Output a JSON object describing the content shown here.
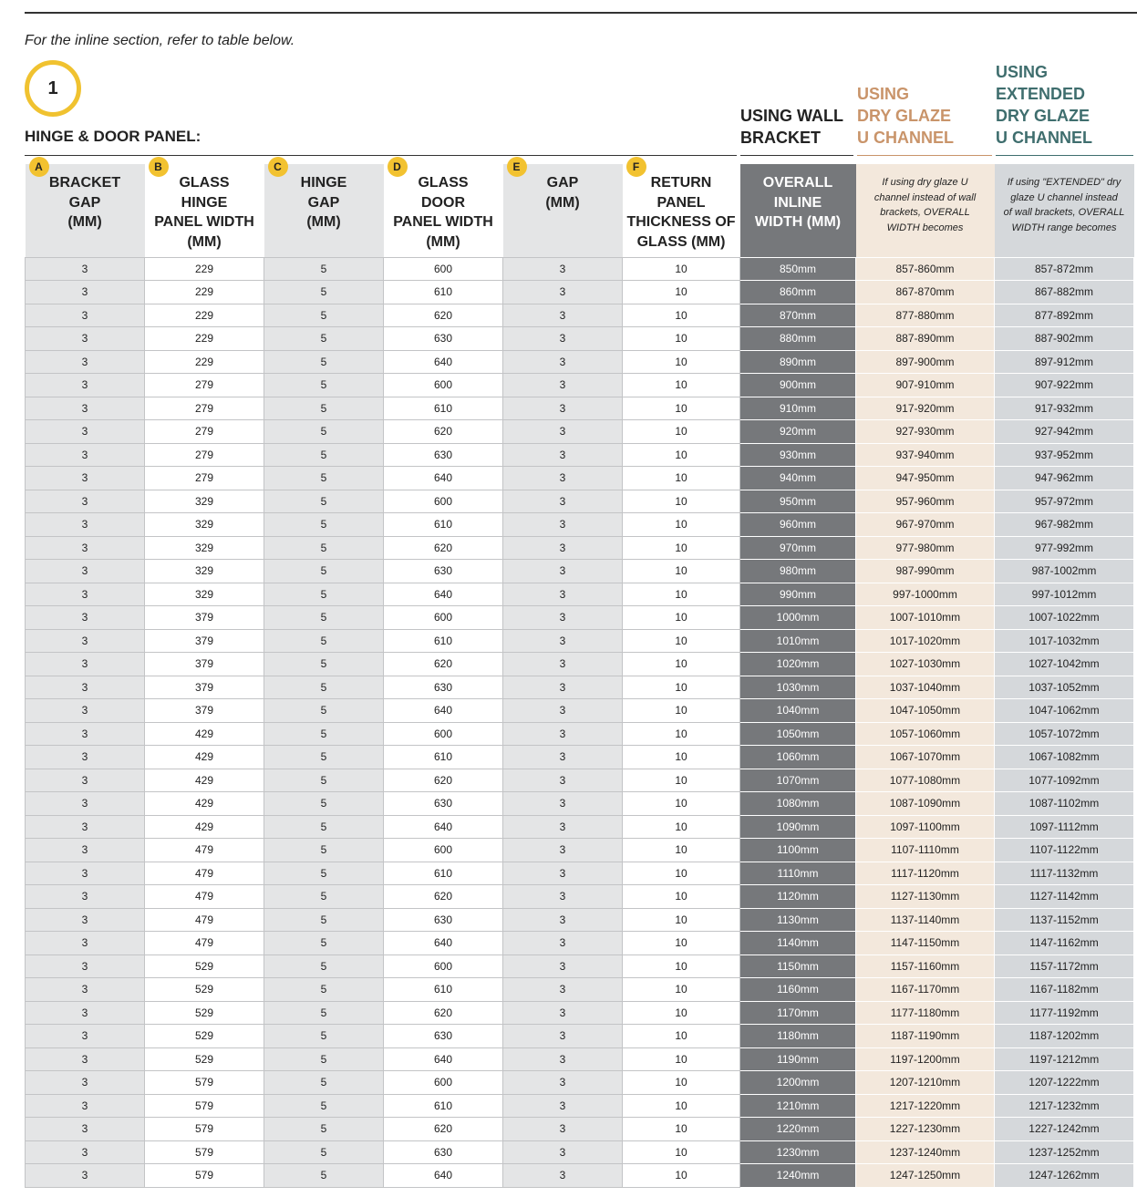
{
  "intro": "For the inline section, refer to table below.",
  "section_number": "1",
  "section_title": "HINGE & DOOR PANEL:",
  "group_headers": [
    {
      "lines": [
        "USING WALL",
        "BRACKET"
      ]
    },
    {
      "lines": [
        "USING",
        "DRY GLAZE",
        "U CHANNEL"
      ]
    },
    {
      "lines": [
        "USING",
        "EXTENDED",
        "DRY GLAZE",
        "U CHANNEL"
      ]
    }
  ],
  "columns": [
    {
      "badge": "A",
      "lines": [
        "BRACKET",
        "GAP",
        "(MM)"
      ]
    },
    {
      "badge": "B",
      "lines": [
        "GLASS",
        "HINGE",
        "PANEL WIDTH",
        "(MM)"
      ]
    },
    {
      "badge": "C",
      "lines": [
        "HINGE",
        "GAP",
        "(MM)"
      ]
    },
    {
      "badge": "D",
      "lines": [
        "GLASS",
        "DOOR",
        "PANEL WIDTH",
        "(MM)"
      ]
    },
    {
      "badge": "E",
      "lines": [
        "GAP",
        "(MM)"
      ]
    },
    {
      "badge": "F",
      "lines": [
        "RETURN",
        "PANEL",
        "THICKNESS OF",
        "GLASS (MM)"
      ]
    },
    {
      "lines": [
        "OVERALL",
        "INLINE",
        "WIDTH (MM)"
      ]
    },
    {
      "lines": [
        "If using dry glaze U",
        "channel instead of wall",
        "brackets, OVERALL",
        "WIDTH becomes"
      ]
    },
    {
      "lines": [
        "If using \"EXTENDED\" dry",
        "glaze U channel instead",
        "of wall brackets, OVERALL",
        "WIDTH range becomes"
      ]
    }
  ],
  "rows": [
    [
      3,
      229,
      5,
      600,
      3,
      10,
      "850mm",
      "857-860mm",
      "857-872mm"
    ],
    [
      3,
      229,
      5,
      610,
      3,
      10,
      "860mm",
      "867-870mm",
      "867-882mm"
    ],
    [
      3,
      229,
      5,
      620,
      3,
      10,
      "870mm",
      "877-880mm",
      "877-892mm"
    ],
    [
      3,
      229,
      5,
      630,
      3,
      10,
      "880mm",
      "887-890mm",
      "887-902mm"
    ],
    [
      3,
      229,
      5,
      640,
      3,
      10,
      "890mm",
      "897-900mm",
      "897-912mm"
    ],
    [
      3,
      279,
      5,
      600,
      3,
      10,
      "900mm",
      "907-910mm",
      "907-922mm"
    ],
    [
      3,
      279,
      5,
      610,
      3,
      10,
      "910mm",
      "917-920mm",
      "917-932mm"
    ],
    [
      3,
      279,
      5,
      620,
      3,
      10,
      "920mm",
      "927-930mm",
      "927-942mm"
    ],
    [
      3,
      279,
      5,
      630,
      3,
      10,
      "930mm",
      "937-940mm",
      "937-952mm"
    ],
    [
      3,
      279,
      5,
      640,
      3,
      10,
      "940mm",
      "947-950mm",
      "947-962mm"
    ],
    [
      3,
      329,
      5,
      600,
      3,
      10,
      "950mm",
      "957-960mm",
      "957-972mm"
    ],
    [
      3,
      329,
      5,
      610,
      3,
      10,
      "960mm",
      "967-970mm",
      "967-982mm"
    ],
    [
      3,
      329,
      5,
      620,
      3,
      10,
      "970mm",
      "977-980mm",
      "977-992mm"
    ],
    [
      3,
      329,
      5,
      630,
      3,
      10,
      "980mm",
      "987-990mm",
      "987-1002mm"
    ],
    [
      3,
      329,
      5,
      640,
      3,
      10,
      "990mm",
      "997-1000mm",
      "997-1012mm"
    ],
    [
      3,
      379,
      5,
      600,
      3,
      10,
      "1000mm",
      "1007-1010mm",
      "1007-1022mm"
    ],
    [
      3,
      379,
      5,
      610,
      3,
      10,
      "1010mm",
      "1017-1020mm",
      "1017-1032mm"
    ],
    [
      3,
      379,
      5,
      620,
      3,
      10,
      "1020mm",
      "1027-1030mm",
      "1027-1042mm"
    ],
    [
      3,
      379,
      5,
      630,
      3,
      10,
      "1030mm",
      "1037-1040mm",
      "1037-1052mm"
    ],
    [
      3,
      379,
      5,
      640,
      3,
      10,
      "1040mm",
      "1047-1050mm",
      "1047-1062mm"
    ],
    [
      3,
      429,
      5,
      600,
      3,
      10,
      "1050mm",
      "1057-1060mm",
      "1057-1072mm"
    ],
    [
      3,
      429,
      5,
      610,
      3,
      10,
      "1060mm",
      "1067-1070mm",
      "1067-1082mm"
    ],
    [
      3,
      429,
      5,
      620,
      3,
      10,
      "1070mm",
      "1077-1080mm",
      "1077-1092mm"
    ],
    [
      3,
      429,
      5,
      630,
      3,
      10,
      "1080mm",
      "1087-1090mm",
      "1087-1102mm"
    ],
    [
      3,
      429,
      5,
      640,
      3,
      10,
      "1090mm",
      "1097-1100mm",
      "1097-1112mm"
    ],
    [
      3,
      479,
      5,
      600,
      3,
      10,
      "1100mm",
      "1107-1110mm",
      "1107-1122mm"
    ],
    [
      3,
      479,
      5,
      610,
      3,
      10,
      "1110mm",
      "1117-1120mm",
      "1117-1132mm"
    ],
    [
      3,
      479,
      5,
      620,
      3,
      10,
      "1120mm",
      "1127-1130mm",
      "1127-1142mm"
    ],
    [
      3,
      479,
      5,
      630,
      3,
      10,
      "1130mm",
      "1137-1140mm",
      "1137-1152mm"
    ],
    [
      3,
      479,
      5,
      640,
      3,
      10,
      "1140mm",
      "1147-1150mm",
      "1147-1162mm"
    ],
    [
      3,
      529,
      5,
      600,
      3,
      10,
      "1150mm",
      "1157-1160mm",
      "1157-1172mm"
    ],
    [
      3,
      529,
      5,
      610,
      3,
      10,
      "1160mm",
      "1167-1170mm",
      "1167-1182mm"
    ],
    [
      3,
      529,
      5,
      620,
      3,
      10,
      "1170mm",
      "1177-1180mm",
      "1177-1192mm"
    ],
    [
      3,
      529,
      5,
      630,
      3,
      10,
      "1180mm",
      "1187-1190mm",
      "1187-1202mm"
    ],
    [
      3,
      529,
      5,
      640,
      3,
      10,
      "1190mm",
      "1197-1200mm",
      "1197-1212mm"
    ],
    [
      3,
      579,
      5,
      600,
      3,
      10,
      "1200mm",
      "1207-1210mm",
      "1207-1222mm"
    ],
    [
      3,
      579,
      5,
      610,
      3,
      10,
      "1210mm",
      "1217-1220mm",
      "1217-1232mm"
    ],
    [
      3,
      579,
      5,
      620,
      3,
      10,
      "1220mm",
      "1227-1230mm",
      "1227-1242mm"
    ],
    [
      3,
      579,
      5,
      630,
      3,
      10,
      "1230mm",
      "1237-1240mm",
      "1237-1252mm"
    ],
    [
      3,
      579,
      5,
      640,
      3,
      10,
      "1240mm",
      "1247-1250mm",
      "1247-1262mm"
    ]
  ]
}
